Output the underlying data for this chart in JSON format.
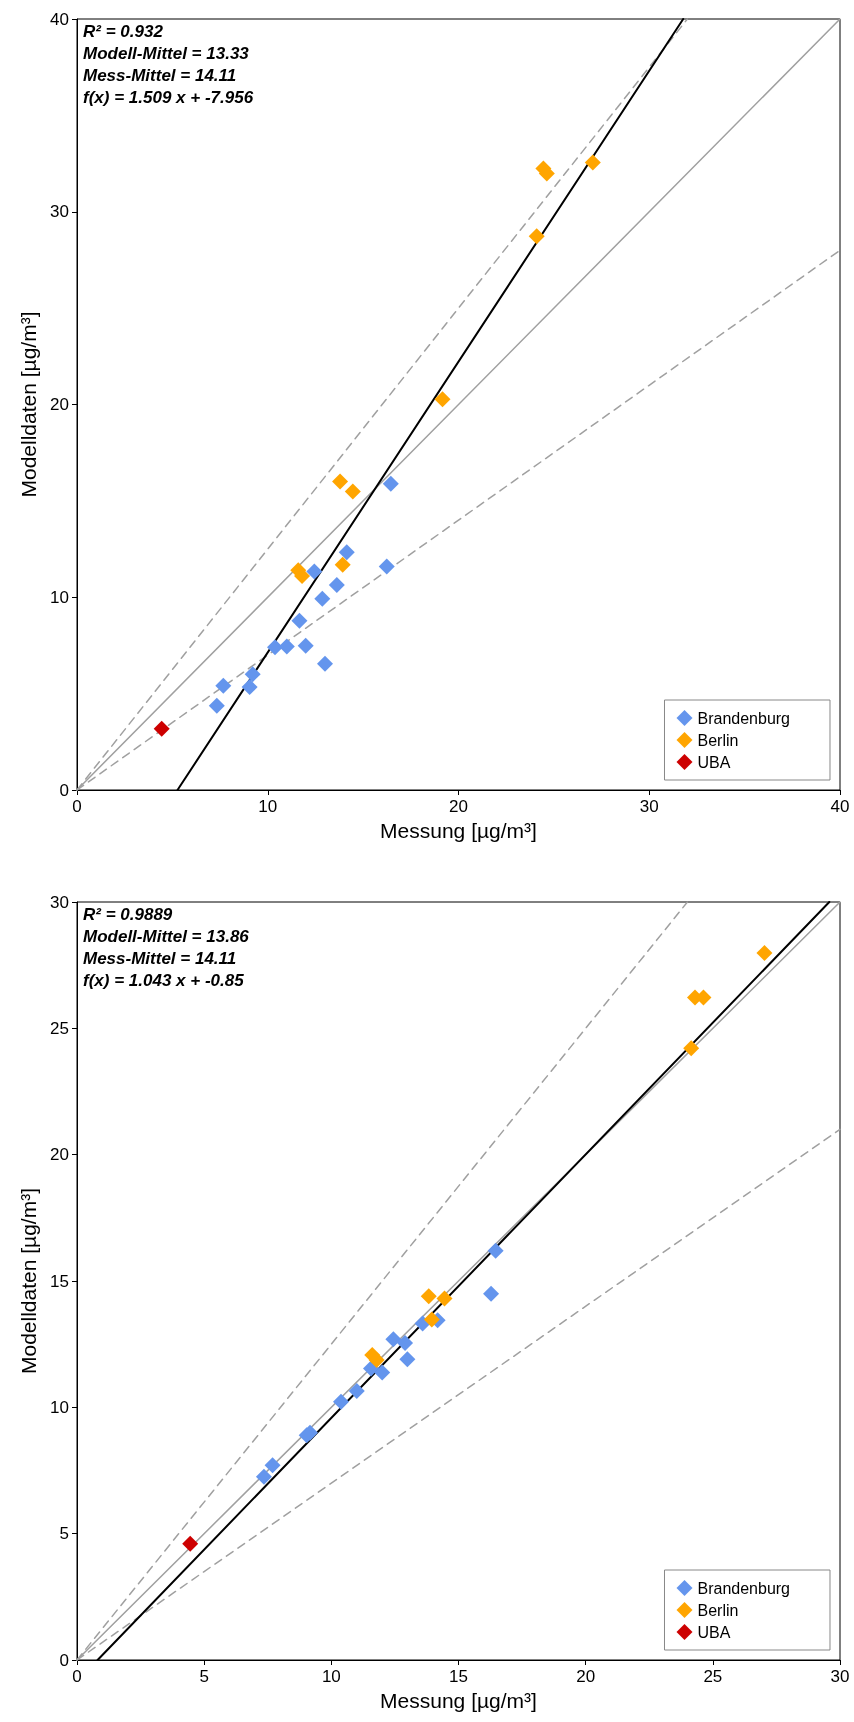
{
  "chart_data": [
    {
      "type": "scatter",
      "xlabel": "Messung [µg/m³]",
      "ylabel": "Modelldaten [µg/m³]",
      "xlim": [
        0,
        40
      ],
      "ylim": [
        0,
        40
      ],
      "xticks": [
        0,
        10,
        20,
        30,
        40
      ],
      "yticks": [
        0,
        10,
        20,
        30,
        40
      ],
      "grid": false,
      "legend": "bottom right",
      "marker": "diamond",
      "annotations": [
        "R² = 0.932",
        "Modell-Mittel = 13.33",
        "Mess-Mittel = 14.11",
        "f(x) = 1.509 x + -7.956"
      ],
      "series": [
        {
          "type": "line",
          "color": "#a0a0a0",
          "line_style": "solid",
          "marker": "none",
          "x": [
            0,
            40
          ],
          "values": [
            0,
            40
          ]
        },
        {
          "type": "line",
          "color": "#a0a0a0",
          "line_style": "dashed",
          "marker": "none",
          "x": [
            0,
            32
          ],
          "values": [
            0,
            40
          ]
        },
        {
          "type": "line",
          "color": "#a0a0a0",
          "line_style": "dashed",
          "marker": "none",
          "x": [
            0,
            40
          ],
          "values": [
            0,
            28
          ]
        },
        {
          "type": "line",
          "color": "#000000",
          "line_style": "solid",
          "marker": "none",
          "x": [
            5.27,
            31.78
          ],
          "values": [
            0,
            40
          ]
        },
        {
          "name": "Brandenburg",
          "color": "#6495ed",
          "x": [
            16.45,
            14.14,
            16.24,
            12.44,
            13.62,
            12.86,
            11.66,
            10.38,
            11.0,
            11.99,
            13.0,
            7.67,
            9.21,
            9.05,
            7.33
          ],
          "values": [
            15.89,
            12.34,
            11.59,
            11.33,
            10.64,
            9.92,
            8.78,
            7.41,
            7.44,
            7.48,
            6.55,
            5.41,
            6.01,
            5.34,
            4.37
          ]
        },
        {
          "name": "Berlin",
          "color": "#ffa500",
          "x": [
            13.79,
            14.46,
            13.93,
            11.6,
            11.8,
            19.16,
            24.1,
            24.45,
            24.63,
            27.04
          ],
          "values": [
            16.0,
            15.48,
            11.68,
            11.4,
            11.1,
            20.27,
            28.73,
            32.24,
            31.98,
            32.55
          ]
        },
        {
          "name": "UBA",
          "color": "#cd0000",
          "x": [
            4.44
          ],
          "values": [
            3.18
          ]
        }
      ]
    },
    {
      "type": "scatter",
      "xlabel": "Messung [µg/m³]",
      "ylabel": "Modelldaten [µg/m³]",
      "xlim": [
        0,
        30
      ],
      "ylim": [
        0,
        30
      ],
      "xticks": [
        0,
        5,
        10,
        15,
        20,
        25,
        30
      ],
      "yticks": [
        0,
        5,
        10,
        15,
        20,
        25,
        30
      ],
      "grid": false,
      "legend": "bottom right",
      "marker": "diamond",
      "annotations": [
        "R² = 0.9889",
        "Modell-Mittel = 13.86",
        "Mess-Mittel = 14.11",
        "f(x) = 1.043 x + -0.85"
      ],
      "series": [
        {
          "type": "line",
          "color": "#a0a0a0",
          "line_style": "solid",
          "marker": "none",
          "x": [
            0,
            30
          ],
          "values": [
            0,
            30
          ]
        },
        {
          "type": "line",
          "color": "#a0a0a0",
          "line_style": "dashed",
          "marker": "none",
          "x": [
            0,
            24
          ],
          "values": [
            0,
            30
          ]
        },
        {
          "type": "line",
          "color": "#a0a0a0",
          "line_style": "dashed",
          "marker": "none",
          "x": [
            0,
            30
          ],
          "values": [
            0,
            21
          ]
        },
        {
          "type": "line",
          "color": "#000000",
          "line_style": "solid",
          "marker": "none",
          "x": [
            0.81,
            29.58
          ],
          "values": [
            0,
            30
          ]
        },
        {
          "name": "Brandenburg",
          "color": "#6495ed",
          "x": [
            16.46,
            16.28,
            14.18,
            13.59,
            12.44,
            12.9,
            12.99,
            11.56,
            12.0,
            11.0,
            10.38,
            9.16,
            9.03,
            7.69,
            7.35
          ],
          "values": [
            16.2,
            14.5,
            13.45,
            13.32,
            12.69,
            12.55,
            11.9,
            11.54,
            11.38,
            10.65,
            10.22,
            8.99,
            8.9,
            7.71,
            7.25
          ]
        },
        {
          "name": "Berlin",
          "color": "#ffa500",
          "x": [
            13.83,
            14.45,
            13.95,
            11.61,
            11.78,
            27.03,
            24.3,
            24.63,
            24.15
          ],
          "values": [
            14.4,
            14.31,
            13.48,
            12.07,
            11.87,
            27.98,
            26.22,
            26.22,
            24.21
          ]
        },
        {
          "name": "UBA",
          "color": "#cd0000",
          "x": [
            4.45
          ],
          "values": [
            4.6
          ]
        }
      ]
    }
  ]
}
